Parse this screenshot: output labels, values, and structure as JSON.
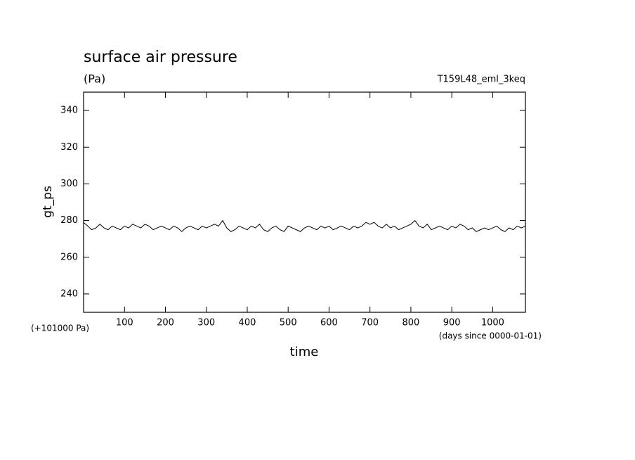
{
  "chart_data": {
    "type": "line",
    "title": "surface air pressure",
    "subtitle": "(Pa)",
    "run_label": "T159L48_eml_3keq",
    "y_label": "gt_ps",
    "y_offset_label": "(+101000 Pa)",
    "x_unit_label": "(days since 0000-01-01)",
    "x_label": "time",
    "xlim": [
      0,
      1080
    ],
    "xticks": [
      100,
      200,
      300,
      400,
      500,
      600,
      700,
      800,
      900,
      1000
    ],
    "ylim": [
      230,
      350
    ],
    "yticks": [
      240,
      260,
      280,
      300,
      320,
      340
    ],
    "x": [
      0,
      10,
      20,
      30,
      40,
      50,
      60,
      70,
      80,
      90,
      100,
      110,
      120,
      130,
      140,
      150,
      160,
      170,
      180,
      190,
      200,
      210,
      220,
      230,
      240,
      250,
      260,
      270,
      280,
      290,
      300,
      310,
      320,
      330,
      340,
      350,
      360,
      370,
      380,
      390,
      400,
      410,
      420,
      430,
      440,
      450,
      460,
      470,
      480,
      490,
      500,
      510,
      520,
      530,
      540,
      550,
      560,
      570,
      580,
      590,
      600,
      610,
      620,
      630,
      640,
      650,
      660,
      670,
      680,
      690,
      700,
      710,
      720,
      730,
      740,
      750,
      760,
      770,
      780,
      790,
      800,
      810,
      820,
      830,
      840,
      850,
      860,
      870,
      880,
      890,
      900,
      910,
      920,
      930,
      940,
      950,
      960,
      970,
      980,
      990,
      1000,
      1010,
      1020,
      1030,
      1040,
      1050,
      1060,
      1070,
      1080
    ],
    "series": [
      {
        "color": "#000000",
        "values": [
          279,
          277,
          275,
          276,
          278,
          276,
          275,
          277,
          276,
          275,
          277,
          276,
          278,
          277,
          276,
          278,
          277,
          275,
          276,
          277,
          276,
          275,
          277,
          276,
          274,
          276,
          277,
          276,
          275,
          277,
          276,
          277,
          278,
          277,
          280,
          276,
          274,
          275,
          277,
          276,
          275,
          277,
          276,
          278,
          275,
          274,
          276,
          277,
          275,
          274,
          277,
          276,
          275,
          274,
          276,
          277,
          276,
          275,
          277,
          276,
          277,
          275,
          276,
          277,
          276,
          275,
          277,
          276,
          277,
          279,
          278,
          279,
          277,
          276,
          278,
          276,
          277,
          275,
          276,
          277,
          278,
          280,
          277,
          276,
          278,
          275,
          276,
          277,
          276,
          275,
          277,
          276,
          278,
          277,
          275,
          276,
          274,
          275,
          276,
          275,
          276,
          277,
          275,
          274,
          276,
          275,
          277,
          276,
          277
        ]
      }
    ]
  }
}
